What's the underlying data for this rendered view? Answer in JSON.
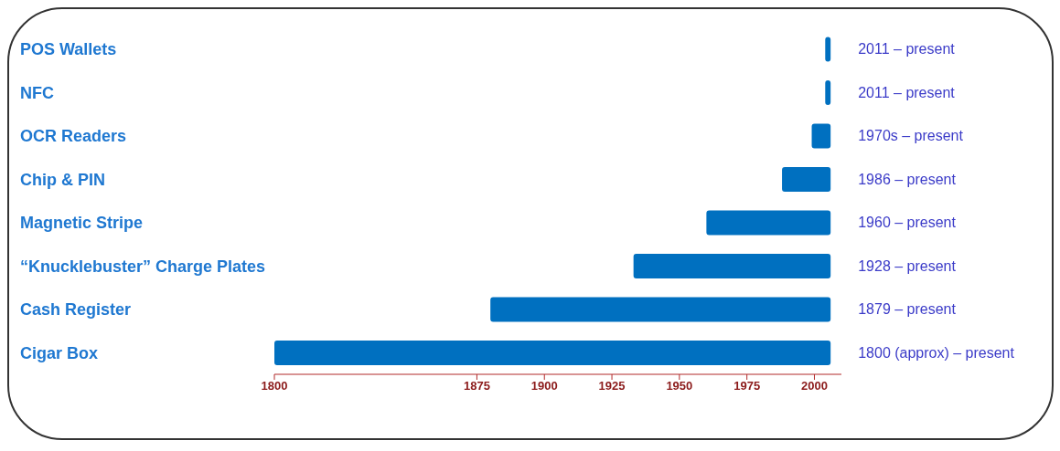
{
  "chart_data": {
    "type": "bar",
    "orientation": "horizontal",
    "categories": [
      "POS Wallets",
      "NFC",
      "OCR Readers",
      "Chip & PIN",
      "Magnetic Stripe",
      "“Knucklebuster” Charge Plates",
      "Cash Register",
      "Cigar Box"
    ],
    "base": [
      2004,
      2004,
      1999,
      1988,
      1960,
      1933,
      1880,
      1800
    ],
    "values": [
      2,
      2,
      7,
      18,
      46,
      73,
      126,
      206
    ],
    "annotations": [
      "2011 – present",
      "2011 – present",
      "1970s – present",
      "1986 – present",
      "1960 – present",
      "1928 – present",
      "1879 – present",
      "1800 (approx) – present"
    ],
    "color": "#0070c0",
    "xlim": [
      1800,
      2010
    ],
    "xticks": [
      1800,
      1875,
      1900,
      1925,
      1950,
      1975,
      2000
    ],
    "grid": false
  }
}
